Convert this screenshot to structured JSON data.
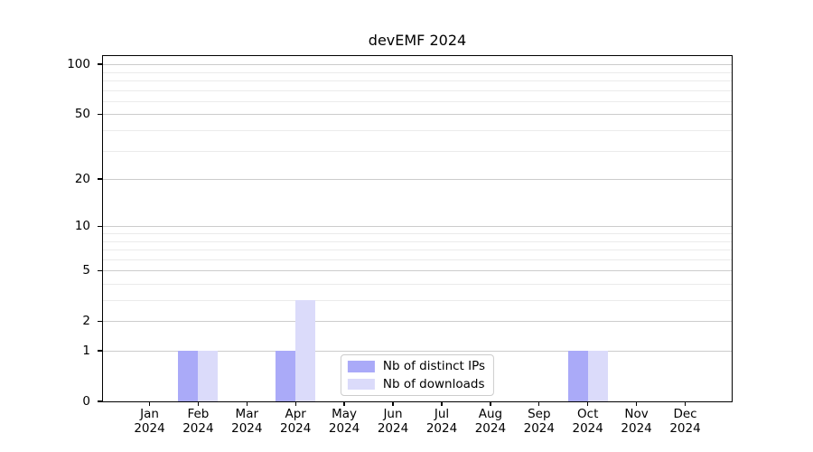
{
  "chart_data": {
    "type": "bar",
    "title": "devEMF 2024",
    "xlabel": "",
    "ylabel": "",
    "categories": [
      "Jan 2024",
      "Feb 2024",
      "Mar 2024",
      "Apr 2024",
      "May 2024",
      "Jun 2024",
      "Jul 2024",
      "Aug 2024",
      "Sep 2024",
      "Oct 2024",
      "Nov 2024",
      "Dec 2024"
    ],
    "series": [
      {
        "name": "Nb of distinct IPs",
        "color": "#aaaaf8",
        "values": [
          0,
          1,
          0,
          1,
          0,
          0,
          0,
          0,
          0,
          1,
          0,
          0
        ]
      },
      {
        "name": "Nb of downloads",
        "color": "#dbdbfa",
        "values": [
          0,
          1,
          0,
          3,
          0,
          0,
          0,
          0,
          0,
          1,
          0,
          0
        ]
      }
    ],
    "y_scale": "log1p",
    "ylim": [
      0,
      112
    ],
    "y_ticks": [
      0,
      1,
      2,
      5,
      10,
      20,
      50,
      100
    ],
    "y_minor_ticks": [
      3,
      4,
      6,
      7,
      8,
      9,
      30,
      40,
      60,
      70,
      80,
      90
    ],
    "grid": "on",
    "legend_position": "lower center",
    "grid_major_color": "#cccccc",
    "grid_minor_color": "#ebebeb",
    "legend_border_color": "#cccccc",
    "axis_color": "#000000",
    "background_color": "#ffffff"
  }
}
